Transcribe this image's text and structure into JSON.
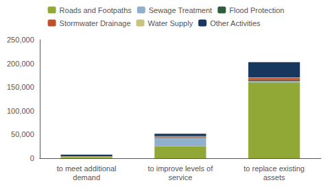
{
  "chart_data": {
    "type": "bar",
    "stacked": true,
    "grid": false,
    "legend": "top",
    "categories": [
      "to meet additional\ndemand",
      "to improve levels of\nservice",
      "to replace existing\nassets"
    ],
    "series": [
      {
        "name": "Roads and Footpaths",
        "color": "#92A836",
        "values": [
          2000,
          25000,
          160000
        ]
      },
      {
        "name": "Sewage Treatment",
        "color": "#92AFCD",
        "values": [
          1000,
          18000,
          3000
        ]
      },
      {
        "name": "Flood Protection",
        "color": "#2E5D3B",
        "values": [
          500,
          1000,
          2000
        ]
      },
      {
        "name": "Stormwater Drainage",
        "color": "#C0522A",
        "values": [
          500,
          2000,
          4000
        ]
      },
      {
        "name": "Water Supply",
        "color": "#C8C47A",
        "values": [
          200,
          500,
          1500
        ]
      },
      {
        "name": "Other Activities",
        "color": "#17375E",
        "values": [
          3500,
          5000,
          32000
        ]
      }
    ],
    "ylim": [
      0,
      250000
    ],
    "yticks": [
      0,
      {
        "value": 50000,
        "label": "50,000"
      },
      {
        "value": 100000,
        "label": "100,000"
      },
      {
        "value": 150000,
        "label": "150,000"
      },
      {
        "value": 200000,
        "label": "200,000"
      },
      {
        "value": 250000,
        "label": "250,000"
      }
    ]
  }
}
